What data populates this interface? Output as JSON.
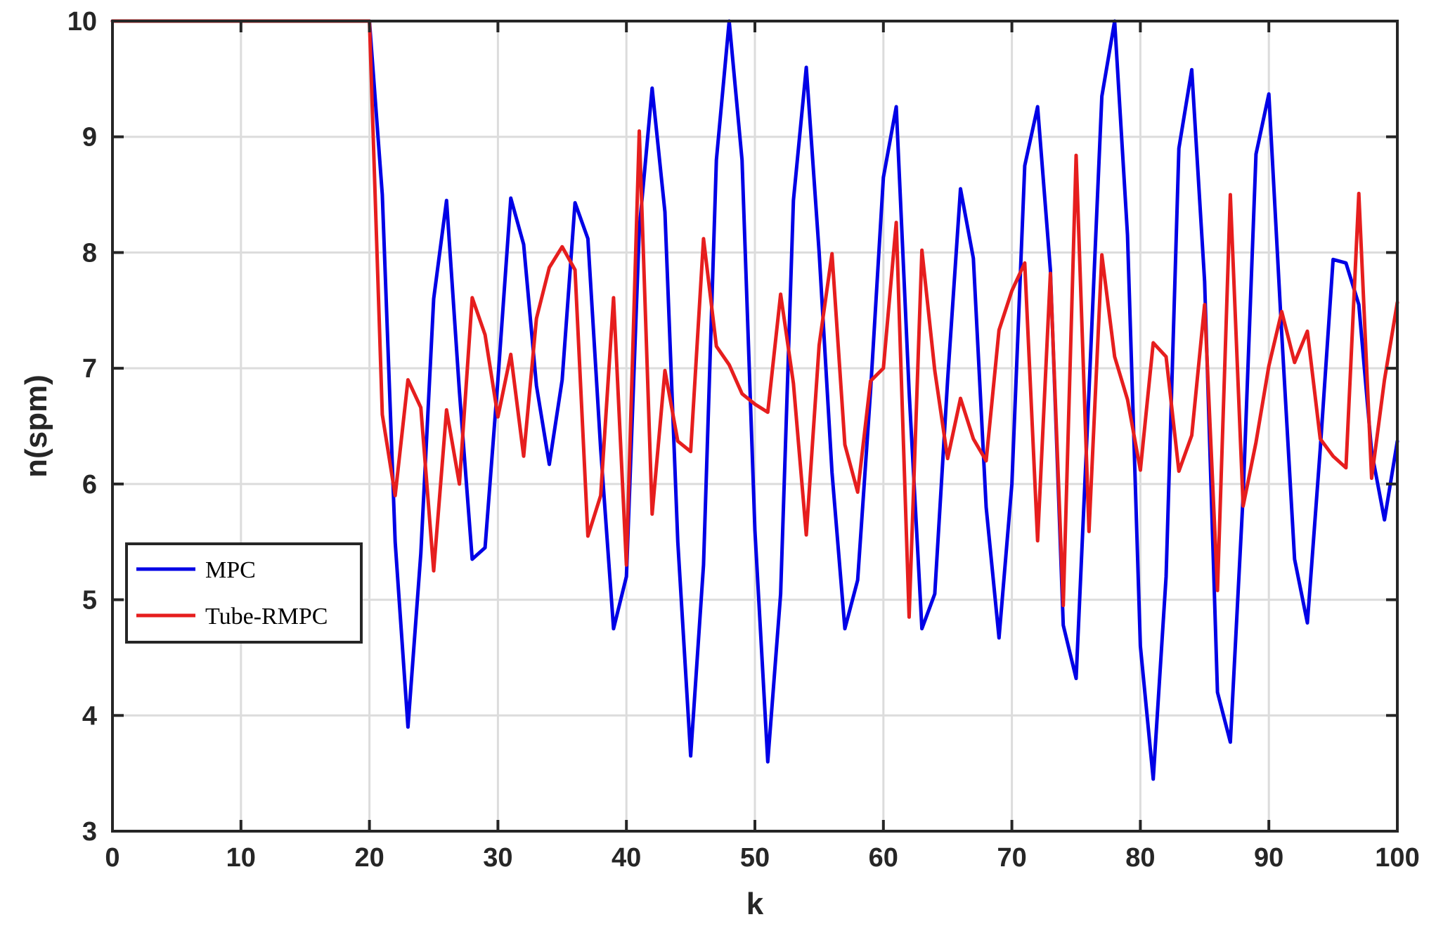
{
  "chart_data": {
    "type": "line",
    "title": "",
    "xlabel": "k",
    "ylabel": "n(spm)",
    "xlim": [
      0,
      100
    ],
    "ylim": [
      3,
      10
    ],
    "xticks": [
      0,
      10,
      20,
      30,
      40,
      50,
      60,
      70,
      80,
      90,
      100
    ],
    "yticks": [
      3,
      4,
      5,
      6,
      7,
      8,
      9,
      10
    ],
    "grid": true,
    "legend_position": "lower-left",
    "series": [
      {
        "name": "MPC",
        "color": "#0000e6",
        "x": [
          0,
          1,
          2,
          3,
          4,
          5,
          6,
          7,
          8,
          9,
          10,
          11,
          12,
          13,
          14,
          15,
          16,
          17,
          18,
          19,
          20,
          21,
          22,
          23,
          24,
          25,
          26,
          27,
          28,
          29,
          30,
          31,
          32,
          33,
          34,
          35,
          36,
          37,
          38,
          39,
          40,
          41,
          42,
          43,
          44,
          45,
          46,
          47,
          48,
          49,
          50,
          51,
          52,
          53,
          54,
          55,
          56,
          57,
          58,
          59,
          60,
          61,
          62,
          63,
          64,
          65,
          66,
          67,
          68,
          69,
          70,
          71,
          72,
          73,
          74,
          75,
          76,
          77,
          78,
          79,
          80,
          81,
          82,
          83,
          84,
          85,
          86,
          87,
          88,
          89,
          90,
          91,
          92,
          93,
          94,
          95,
          96,
          97,
          98,
          99,
          100
        ],
        "y": [
          10,
          10,
          10,
          10,
          10,
          10,
          10,
          10,
          10,
          10,
          10,
          10,
          10,
          10,
          10,
          10,
          10,
          10,
          10,
          10,
          10,
          8.5,
          5.5,
          3.9,
          5.4,
          7.6,
          8.45,
          6.8,
          5.35,
          5.45,
          6.9,
          8.47,
          8.07,
          6.85,
          6.17,
          6.9,
          8.43,
          8.12,
          6.3,
          4.75,
          5.2,
          8.2,
          9.42,
          8.35,
          5.5,
          3.65,
          5.3,
          8.8,
          10.0,
          8.8,
          5.6,
          3.6,
          5.05,
          8.45,
          9.6,
          8.0,
          6.1,
          4.75,
          5.17,
          6.8,
          8.65,
          9.26,
          6.8,
          4.75,
          5.05,
          6.9,
          8.55,
          7.95,
          5.8,
          4.67,
          6.0,
          8.75,
          9.26,
          7.85,
          4.78,
          4.32,
          6.8,
          9.35,
          10.0,
          8.15,
          4.6,
          3.45,
          5.2,
          8.9,
          9.58,
          7.75,
          4.2,
          3.77,
          5.9,
          8.85,
          9.37,
          7.3,
          5.35,
          4.8,
          6.3,
          7.94,
          7.91,
          7.55,
          6.28,
          5.69,
          6.37
        ]
      },
      {
        "name": "Tube-RMPC",
        "color": "#e61e1e",
        "x": [
          0,
          1,
          2,
          3,
          4,
          5,
          6,
          7,
          8,
          9,
          10,
          11,
          12,
          13,
          14,
          15,
          16,
          17,
          18,
          19,
          20,
          21,
          22,
          23,
          24,
          25,
          26,
          27,
          28,
          29,
          30,
          31,
          32,
          33,
          34,
          35,
          36,
          37,
          38,
          39,
          40,
          41,
          42,
          43,
          44,
          45,
          46,
          47,
          48,
          49,
          50,
          51,
          52,
          53,
          54,
          55,
          56,
          57,
          58,
          59,
          60,
          61,
          62,
          63,
          64,
          65,
          66,
          67,
          68,
          69,
          70,
          71,
          72,
          73,
          74,
          75,
          76,
          77,
          78,
          79,
          80,
          81,
          82,
          83,
          84,
          85,
          86,
          87,
          88,
          89,
          90,
          91,
          92,
          93,
          94,
          95,
          96,
          97,
          98,
          99,
          100
        ],
        "y": [
          10,
          10,
          10,
          10,
          10,
          10,
          10,
          10,
          10,
          10,
          10,
          10,
          10,
          10,
          10,
          10,
          10,
          10,
          10,
          10,
          10,
          6.6,
          5.9,
          6.9,
          6.66,
          5.25,
          6.64,
          6.0,
          7.61,
          7.29,
          6.58,
          7.12,
          6.24,
          7.43,
          7.87,
          8.05,
          7.85,
          5.55,
          5.9,
          7.61,
          5.3,
          9.05,
          5.74,
          6.98,
          6.37,
          6.28,
          8.12,
          7.19,
          7.03,
          6.78,
          6.69,
          6.62,
          7.64,
          6.87,
          5.56,
          7.2,
          7.99,
          6.34,
          5.93,
          6.89,
          7.0,
          8.26,
          4.85,
          8.02,
          6.98,
          6.22,
          6.74,
          6.39,
          6.2,
          7.33,
          7.67,
          7.91,
          5.51,
          7.82,
          4.95,
          8.84,
          5.59,
          7.98,
          7.1,
          6.73,
          6.12,
          7.22,
          7.1,
          6.11,
          6.42,
          7.55,
          5.08,
          8.5,
          5.81,
          6.36,
          7.02,
          7.49,
          7.05,
          7.32,
          6.39,
          6.24,
          6.14,
          8.51,
          6.05,
          6.9,
          7.57
        ]
      }
    ]
  }
}
